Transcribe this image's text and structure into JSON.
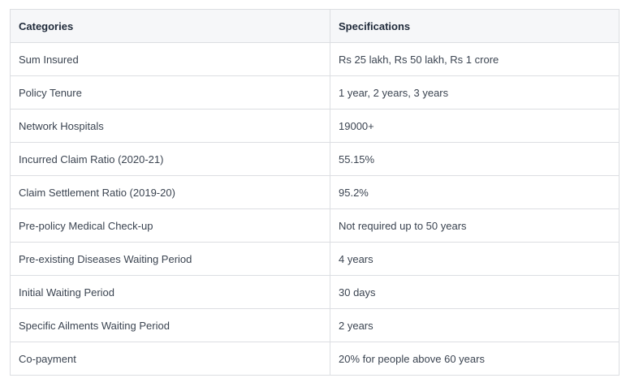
{
  "table": {
    "headers": [
      "Categories",
      "Specifications"
    ],
    "rows": [
      [
        "Sum Insured",
        "Rs 25 lakh, Rs 50 lakh, Rs 1 crore"
      ],
      [
        "Policy Tenure",
        "1 year, 2 years, 3 years"
      ],
      [
        "Network Hospitals",
        "19000+"
      ],
      [
        "Incurred Claim Ratio (2020-21)",
        "55.15%"
      ],
      [
        "Claim Settlement Ratio (2019-20)",
        "95.2%"
      ],
      [
        "Pre-policy Medical Check-up",
        "Not required up to 50 years"
      ],
      [
        "Pre-existing Diseases Waiting Period",
        "4 years"
      ],
      [
        "Initial Waiting Period",
        "30 days"
      ],
      [
        "Specific Ailments Waiting Period",
        "2 years"
      ],
      [
        "Co-payment",
        "20% for people above 60 years"
      ]
    ]
  }
}
